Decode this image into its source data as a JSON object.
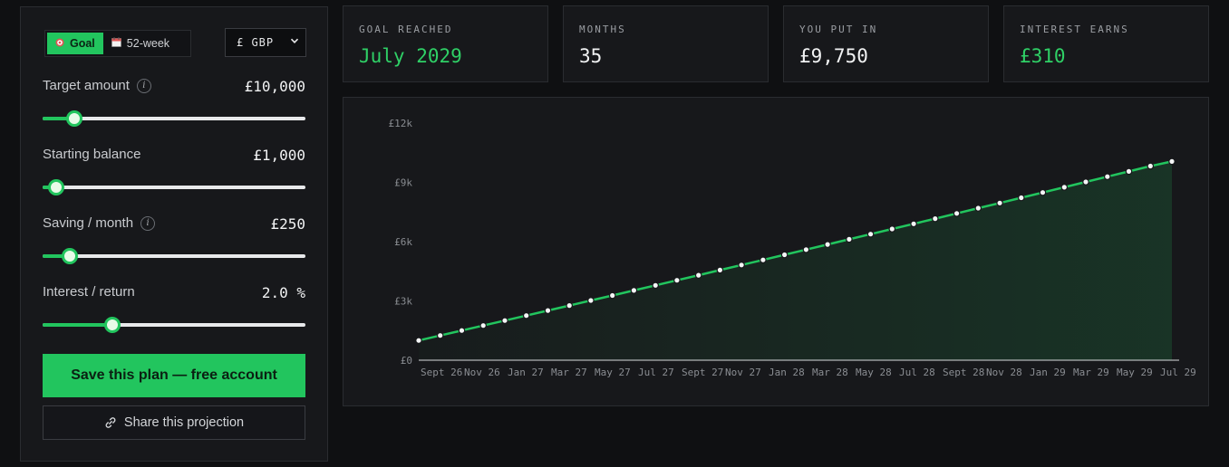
{
  "modes": {
    "goal": {
      "label": "Goal",
      "icon": "target-icon"
    },
    "week52": {
      "label": "52-week",
      "icon": "calendar-icon"
    }
  },
  "currency": {
    "selected": "£ GBP"
  },
  "fields": {
    "target": {
      "label": "Target amount",
      "value": "£10,000",
      "slider_fraction": 0.12
    },
    "starting": {
      "label": "Starting balance",
      "value": "£1,000",
      "slider_fraction": 0.05
    },
    "saving": {
      "label": "Saving / month",
      "value": "£250",
      "slider_fraction": 0.105
    },
    "interest": {
      "label": "Interest / return",
      "value": "2.0 %",
      "slider_fraction": 0.265
    }
  },
  "buttons": {
    "save": "Save this plan — free account",
    "share": "Share this projection"
  },
  "stats": {
    "goal_reached": {
      "label": "GOAL REACHED",
      "value": "July 2029"
    },
    "months": {
      "label": "MONTHS",
      "value": "35"
    },
    "put_in": {
      "label": "YOU PUT IN",
      "value": "£9,750"
    },
    "interest": {
      "label": "INTEREST EARNS",
      "value": "£310"
    }
  },
  "colors": {
    "accent": "#22c55e"
  },
  "chart_data": {
    "type": "line",
    "y_ticks": [
      "£0",
      "£3k",
      "£6k",
      "£9k",
      "£12k"
    ],
    "ylim": [
      0,
      12000
    ],
    "x_tick_labels": [
      "Sept 26",
      "Nov 26",
      "Jan 27",
      "Mar 27",
      "May 27",
      "Jul 27",
      "Sept 27",
      "Nov 27",
      "Jan 28",
      "Mar 28",
      "May 28",
      "Jul 28",
      "Sept 28",
      "Nov 28",
      "Jan 29",
      "Mar 29",
      "May 29",
      "Jul 29"
    ],
    "series": [
      {
        "values": [
          1000,
          1251,
          1502,
          1754,
          2007,
          2260,
          2513,
          2767,
          3022,
          3277,
          3532,
          3789,
          4045,
          4302,
          4560,
          4818,
          5077,
          5336,
          5596,
          5856,
          6117,
          6378,
          6640,
          6902,
          7165,
          7429,
          7693,
          7957,
          8222,
          8488,
          8754,
          9021,
          9288,
          9556,
          9824,
          10060
        ]
      }
    ]
  }
}
